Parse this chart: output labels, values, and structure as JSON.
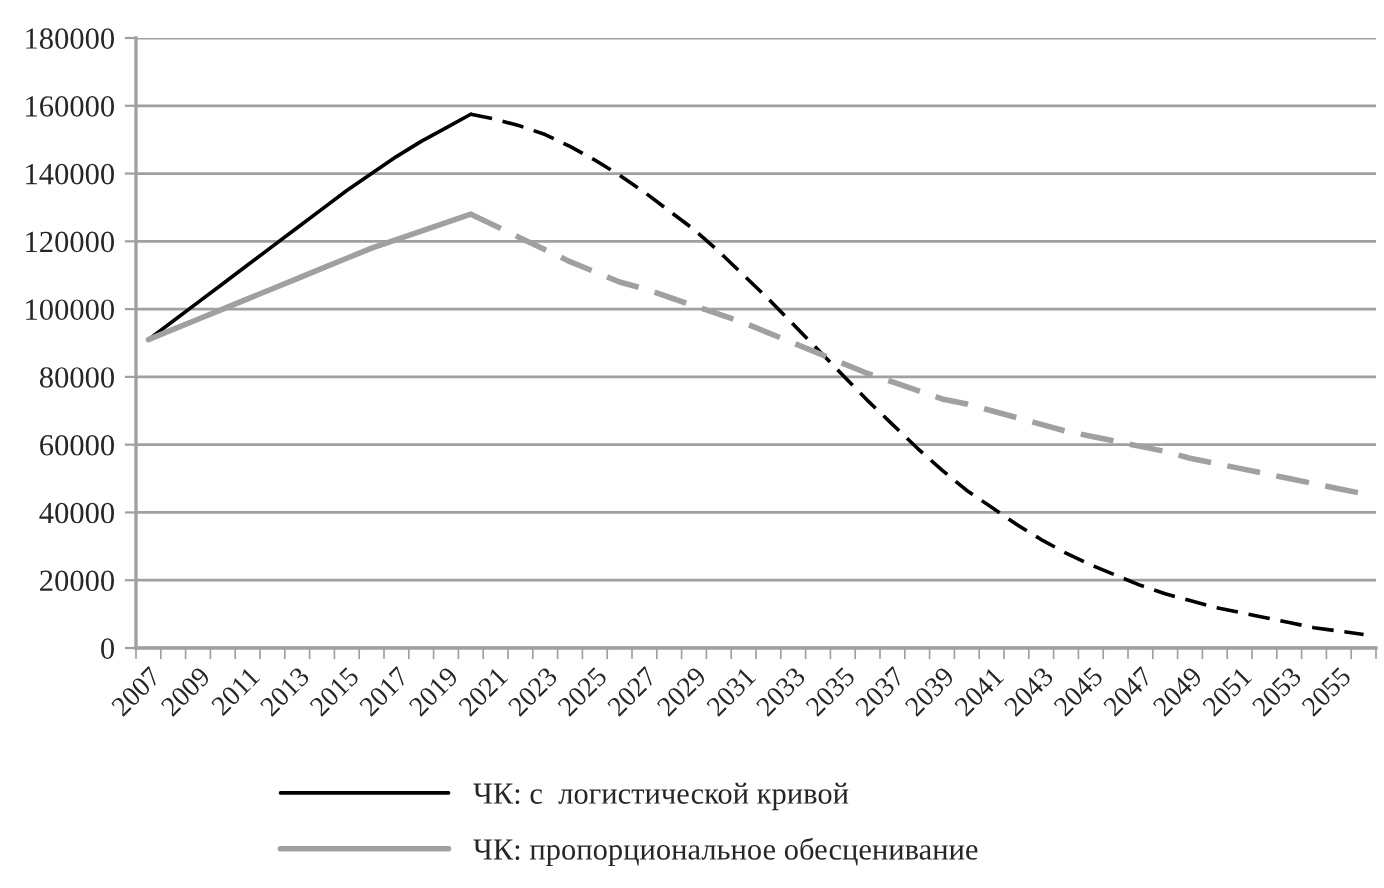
{
  "chart_data": {
    "type": "line",
    "categories": [
      "2007",
      null,
      "2009",
      null,
      "2011",
      null,
      "2013",
      null,
      "2015",
      null,
      "2017",
      null,
      "2019",
      null,
      "2021",
      null,
      "2023",
      null,
      "2025",
      null,
      "2027",
      null,
      "2029",
      null,
      "2031",
      null,
      "2033",
      null,
      "2035",
      null,
      "2037",
      null,
      "2039",
      null,
      "2041",
      null,
      "2043",
      null,
      "2045",
      null,
      "2047",
      null,
      "2049",
      null,
      "2051",
      null,
      "2053",
      null,
      "2055",
      null
    ],
    "series": [
      {
        "name": "ЧК: с  логистической кривой",
        "color": "#000000",
        "line_style": "solid",
        "values": [
          91000,
          96500,
          102000,
          107500,
          113000,
          118500,
          124000,
          129500,
          135000,
          140000,
          145000,
          149500,
          153500,
          157500,
          null,
          null,
          null,
          null,
          null,
          null,
          null,
          null,
          null,
          null,
          null,
          null,
          null,
          null,
          null,
          null,
          null,
          null,
          null,
          null,
          null,
          null,
          null,
          null,
          null,
          null,
          null,
          null,
          null,
          null,
          null,
          null,
          null,
          null,
          null,
          null
        ]
      },
      {
        "color": "#000000",
        "line_style": "dashed",
        "values": [
          null,
          null,
          null,
          null,
          null,
          null,
          null,
          null,
          null,
          null,
          null,
          null,
          null,
          157500,
          156000,
          154000,
          151500,
          148000,
          144000,
          139500,
          134500,
          129000,
          123500,
          117000,
          110000,
          103000,
          95500,
          88000,
          80500,
          73000,
          66000,
          59000,
          52500,
          46500,
          41500,
          36500,
          32000,
          28000,
          24500,
          21500,
          18500,
          16000,
          14000,
          12000,
          10500,
          9000,
          7500,
          6000,
          5000,
          4000
        ]
      },
      {
        "name": "ЧК: пропорциональное обесценивание",
        "color": "#a0a0a0",
        "line_style": "solid",
        "values": [
          91000,
          94000,
          97000,
          100000,
          103000,
          106000,
          109000,
          112000,
          115000,
          118000,
          120500,
          123000,
          125500,
          128000,
          null,
          null,
          null,
          null,
          null,
          null,
          null,
          null,
          null,
          null,
          null,
          null,
          null,
          null,
          null,
          null,
          null,
          null,
          null,
          null,
          null,
          null,
          null,
          null,
          null,
          null,
          null,
          null,
          null,
          null,
          null,
          null,
          null,
          null,
          null,
          null
        ]
      },
      {
        "color": "#a0a0a0",
        "line_style": "dashed",
        "values": [
          null,
          null,
          null,
          null,
          null,
          null,
          null,
          null,
          null,
          null,
          null,
          null,
          null,
          128000,
          124500,
          121000,
          117500,
          114000,
          111000,
          108000,
          106000,
          103500,
          101000,
          98500,
          96000,
          93000,
          90000,
          87000,
          84000,
          81000,
          78500,
          76000,
          73500,
          72000,
          70000,
          68000,
          66000,
          64000,
          62500,
          61000,
          59500,
          58000,
          56000,
          54500,
          53000,
          51500,
          50000,
          48500,
          47000,
          45500
        ]
      }
    ],
    "ylim": [
      0,
      180000
    ],
    "yticks": [
      0,
      20000,
      40000,
      60000,
      80000,
      100000,
      120000,
      140000,
      160000,
      180000
    ],
    "grid": "y",
    "legend": "bottom",
    "marker": "none"
  }
}
